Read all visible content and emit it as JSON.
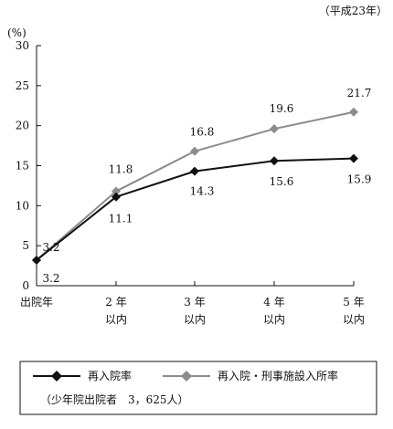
{
  "chart_data": {
    "type": "line",
    "note": "（平成23年）",
    "ylabel": "(%)",
    "ylim": [
      0,
      30
    ],
    "yticks": [
      0,
      5,
      10,
      15,
      20,
      25,
      30
    ],
    "x_lines": [
      [
        "出院年"
      ],
      [
        "2 年",
        "以内"
      ],
      [
        "3 年",
        "以内"
      ],
      [
        "4 年",
        "以内"
      ],
      [
        "5 年",
        "以内"
      ]
    ],
    "series": [
      {
        "name": "再入院率",
        "values": [
          3.2,
          11.1,
          14.3,
          15.6,
          15.9
        ],
        "labels": [
          "3.2",
          "11.1",
          "14.3",
          "15.6",
          "15.9"
        ],
        "color": "#111111"
      },
      {
        "name": "再入院・刑事施設入所率",
        "values": [
          3.2,
          11.8,
          16.8,
          19.6,
          21.7
        ],
        "labels": [
          "3.2",
          "11.8",
          "16.8",
          "19.6",
          "21.7"
        ],
        "color": "#8c8c8c"
      }
    ],
    "legend_note": "（少年院出院者　3，625人）",
    "legend_position": "bottom",
    "grid": false
  }
}
